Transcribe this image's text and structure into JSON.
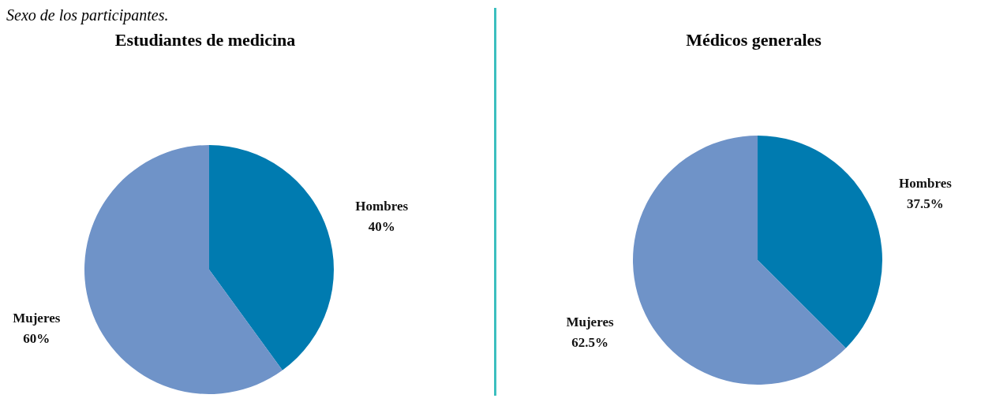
{
  "chart_data": [
    {
      "type": "pie",
      "title": "Estudiantes de medicina",
      "annotations": [
        "Sexo de los participantes."
      ],
      "categories": [
        "Hombres",
        "Mujeres"
      ],
      "values": [
        40,
        60
      ],
      "value_labels": [
        "40%",
        "60%"
      ],
      "colors": [
        "#007bb0",
        "#6f93c8"
      ]
    },
    {
      "type": "pie",
      "title": "Médicos generales",
      "categories": [
        "Hombres",
        "Mujeres"
      ],
      "values": [
        37.5,
        62.5
      ],
      "value_labels": [
        "37.5%",
        "62.5%"
      ],
      "colors": [
        "#007bb0",
        "#6f93c8"
      ]
    }
  ]
}
